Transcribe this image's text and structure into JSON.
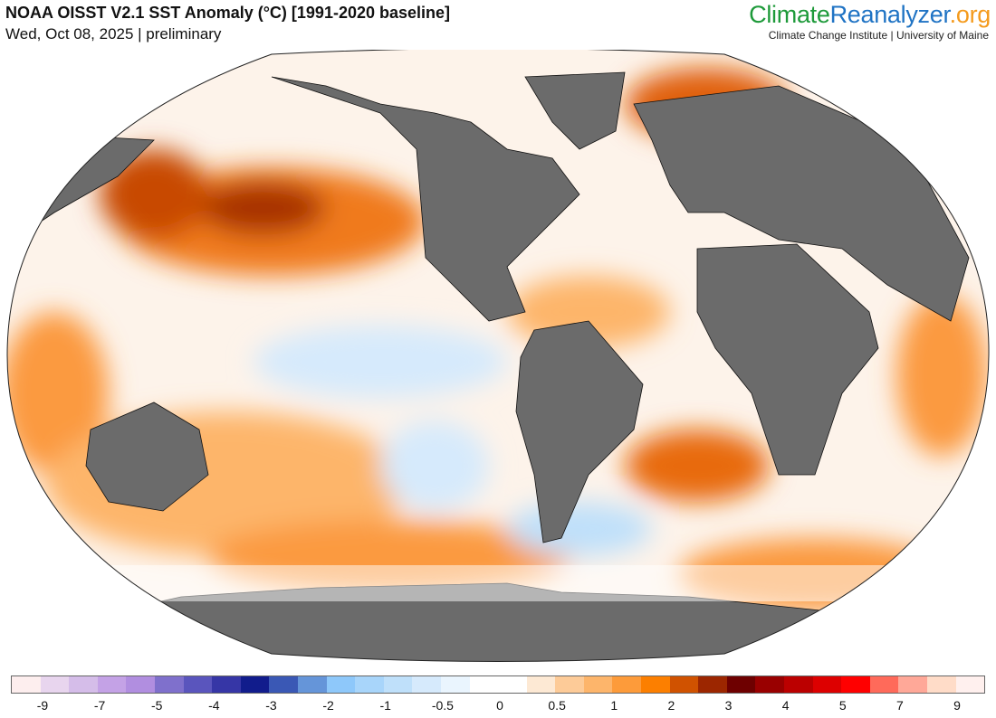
{
  "header": {
    "title": "NOAA OISST V2.1 SST Anomaly (°C) [1991-2020 baseline]",
    "subtitle": "Wed, Oct 08, 2025 | preliminary"
  },
  "brand": {
    "part1": "Climate",
    "part2": "Reanalyzer",
    "part3": ".org",
    "subtitle": "Climate Change Institute | University of Maine"
  },
  "map": {
    "projection": "Winkel tripel",
    "land_color": "#6b6b6b",
    "variable": "SST anomaly"
  },
  "colorbar": {
    "colors": [
      "#fdeeee",
      "#e8d5ee",
      "#d5bde9",
      "#c4a2e6",
      "#b18ee0",
      "#7f70cc",
      "#5a55bd",
      "#3636a6",
      "#111c8c",
      "#3a58b5",
      "#6595d9",
      "#8ec8fa",
      "#a8d5fa",
      "#bfe0fa",
      "#d6eafc",
      "#eaf5fe",
      "#ffffff",
      "#fde9d4",
      "#fdcb98",
      "#fdb56b",
      "#fd9b3a",
      "#fc7f00",
      "#d05200",
      "#9c2600",
      "#6e0000",
      "#990000",
      "#bb0000",
      "#dd0000",
      "#ff0000",
      "#ff6a5a",
      "#ffa898",
      "#ffdcc8",
      "#fff0ee"
    ],
    "labels": [
      "-9",
      "-7",
      "-5",
      "-4",
      "-3",
      "-2",
      "-1",
      "-0.5",
      "0",
      "0.5",
      "1",
      "2",
      "3",
      "4",
      "5",
      "7",
      "9"
    ]
  }
}
